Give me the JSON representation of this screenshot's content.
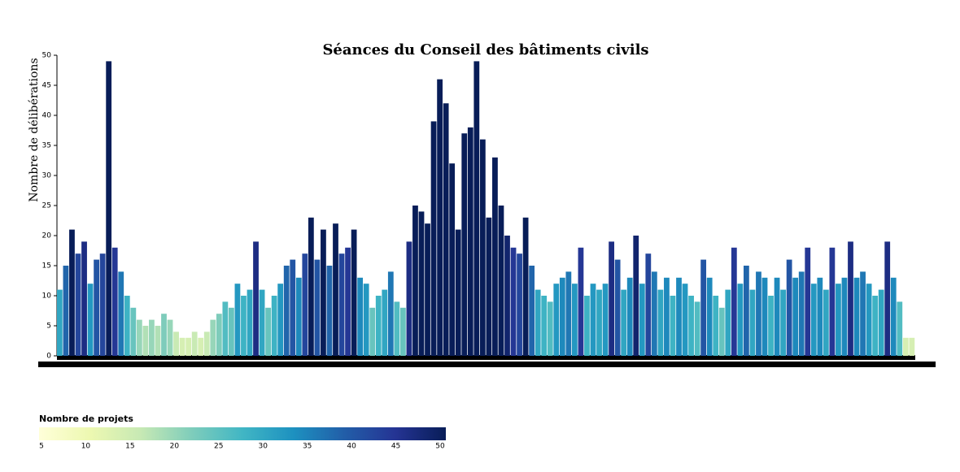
{
  "chart_data": {
    "type": "bar",
    "title": "Séances du Conseil des bâtiments civils",
    "y_label": "Nombre de délibérations",
    "ylim": [
      0,
      50
    ],
    "yticks": [
      0,
      5,
      10,
      15,
      20,
      25,
      30,
      35,
      40,
      45,
      50
    ],
    "values": [
      11,
      15,
      21,
      17,
      19,
      12,
      16,
      17,
      49,
      18,
      14,
      10,
      8,
      6,
      5,
      6,
      5,
      7,
      6,
      4,
      3,
      3,
      4,
      3,
      4,
      6,
      7,
      9,
      8,
      12,
      10,
      11,
      19,
      11,
      8,
      10,
      12,
      15,
      16,
      13,
      17,
      23,
      16,
      21,
      15,
      22,
      17,
      18,
      21,
      13,
      12,
      8,
      10,
      11,
      14,
      9,
      8,
      19,
      25,
      24,
      22,
      39,
      46,
      42,
      32,
      21,
      37,
      38,
      49,
      36,
      23,
      33,
      25,
      20,
      18,
      17,
      23,
      15,
      11,
      10,
      9,
      12,
      13,
      14,
      12,
      18,
      10,
      12,
      11,
      12,
      19,
      16,
      11,
      13,
      20,
      12,
      17,
      14,
      11,
      13,
      10,
      13,
      12,
      10,
      9,
      16,
      13,
      10,
      8,
      11,
      18,
      12,
      15,
      11,
      14,
      13,
      10,
      13,
      11,
      16,
      13,
      14,
      18,
      12,
      13,
      11,
      18,
      12,
      13,
      19,
      13,
      14,
      12,
      10,
      11,
      19,
      13,
      9,
      3,
      3
    ],
    "projects": [
      30,
      38,
      50,
      42,
      46,
      32,
      40,
      42,
      50,
      44,
      36,
      28,
      24,
      20,
      18,
      20,
      18,
      22,
      20,
      16,
      14,
      14,
      16,
      14,
      16,
      20,
      22,
      26,
      24,
      32,
      28,
      30,
      46,
      30,
      24,
      28,
      32,
      38,
      40,
      34,
      42,
      50,
      40,
      50,
      38,
      50,
      42,
      44,
      50,
      34,
      32,
      24,
      28,
      30,
      36,
      26,
      24,
      46,
      50,
      50,
      50,
      50,
      50,
      50,
      50,
      50,
      50,
      50,
      50,
      50,
      50,
      50,
      50,
      48,
      44,
      42,
      50,
      38,
      30,
      28,
      26,
      32,
      34,
      36,
      32,
      44,
      28,
      32,
      30,
      32,
      46,
      40,
      30,
      34,
      48,
      32,
      42,
      36,
      30,
      34,
      28,
      34,
      32,
      28,
      26,
      40,
      34,
      28,
      24,
      30,
      44,
      32,
      38,
      30,
      36,
      34,
      28,
      34,
      30,
      40,
      34,
      36,
      44,
      32,
      34,
      30,
      44,
      32,
      34,
      46,
      34,
      36,
      32,
      28,
      30,
      46,
      34,
      26,
      14,
      14
    ],
    "colorscale": [
      "#ffffd9",
      "#edf8b1",
      "#c7e9b4",
      "#7fcdbb",
      "#41b6c4",
      "#1d91c0",
      "#225ea8",
      "#253494",
      "#081d58"
    ],
    "legend": {
      "title": "Nombre de projets",
      "range": [
        5,
        50
      ],
      "ticks": [
        5,
        10,
        15,
        20,
        25,
        30,
        35,
        40,
        45,
        50
      ]
    }
  }
}
